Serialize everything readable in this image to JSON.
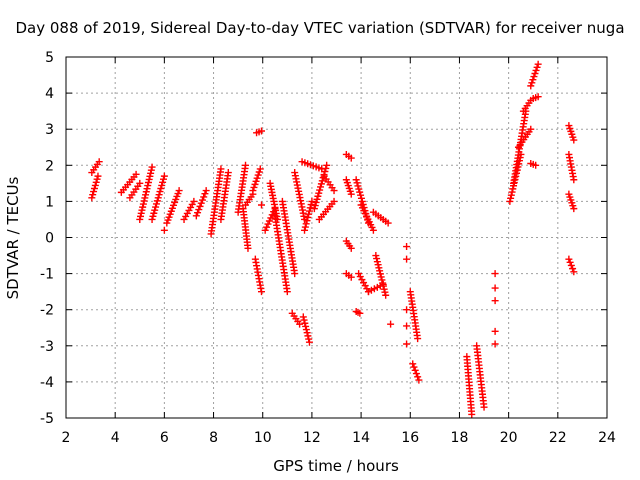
{
  "chart_data": {
    "type": "scatter",
    "title": "Day 088 of 2019, Sidereal Day-to-day VTEC variation (SDTVAR) for receiver nuga",
    "xlabel": "GPS time / hours",
    "ylabel": "SDTVAR / TECUs",
    "xlim": [
      2,
      24
    ],
    "ylim": [
      -5,
      5
    ],
    "xticks": [
      "2",
      "4",
      "6",
      "8",
      "10",
      "12",
      "14",
      "16",
      "18",
      "20",
      "22",
      "24"
    ],
    "yticks": [
      "5",
      "4",
      "3",
      "2",
      "1",
      "0",
      "-1",
      "-2",
      "-3",
      "-4",
      "-5"
    ],
    "grid": true,
    "marker": "+",
    "color": "#ff0000",
    "series_segments": [
      {
        "x0": 3.05,
        "y0": 1.1,
        "x1": 3.3,
        "y1": 1.7
      },
      {
        "x0": 3.05,
        "y0": 1.8,
        "x1": 3.35,
        "y1": 2.1
      },
      {
        "x0": 4.25,
        "y0": 1.25,
        "x1": 4.85,
        "y1": 1.75
      },
      {
        "x0": 4.6,
        "y0": 1.1,
        "x1": 5.0,
        "y1": 1.5
      },
      {
        "x0": 5.0,
        "y0": 0.5,
        "x1": 5.5,
        "y1": 1.95
      },
      {
        "x0": 5.5,
        "y0": 0.5,
        "x1": 6.0,
        "y1": 1.7
      },
      {
        "x0": 6.1,
        "y0": 0.4,
        "x1": 6.6,
        "y1": 1.3
      },
      {
        "x0": 6.8,
        "y0": 0.5,
        "x1": 7.2,
        "y1": 1.0
      },
      {
        "x0": 7.3,
        "y0": 0.6,
        "x1": 7.7,
        "y1": 1.3
      },
      {
        "x0": 7.9,
        "y0": 0.1,
        "x1": 8.3,
        "y1": 1.9
      },
      {
        "x0": 8.3,
        "y0": 0.5,
        "x1": 8.6,
        "y1": 1.8
      },
      {
        "x0": 9.0,
        "y0": 0.7,
        "x1": 9.3,
        "y1": 2.0
      },
      {
        "x0": 9.3,
        "y0": 0.9,
        "x1": 9.6,
        "y1": 1.2
      },
      {
        "x0": 9.6,
        "y0": 1.3,
        "x1": 9.9,
        "y1": 1.9
      },
      {
        "x0": 9.2,
        "y0": 0.8,
        "x1": 9.4,
        "y1": -0.3
      },
      {
        "x0": 9.7,
        "y0": -0.6,
        "x1": 9.95,
        "y1": -1.5
      },
      {
        "x0": 9.75,
        "y0": 2.9,
        "x1": 9.95,
        "y1": 2.95
      },
      {
        "x0": 10.1,
        "y0": 0.2,
        "x1": 10.5,
        "y1": 0.8
      },
      {
        "x0": 10.3,
        "y0": 1.5,
        "x1": 10.6,
        "y1": 0.5
      },
      {
        "x0": 10.5,
        "y0": 0.6,
        "x1": 11.0,
        "y1": -1.5
      },
      {
        "x0": 10.8,
        "y0": 1.0,
        "x1": 11.3,
        "y1": -1.0
      },
      {
        "x0": 11.2,
        "y0": -2.1,
        "x1": 11.5,
        "y1": -2.4
      },
      {
        "x0": 11.65,
        "y0": -2.2,
        "x1": 11.9,
        "y1": -2.9
      },
      {
        "x0": 11.6,
        "y0": 2.1,
        "x1": 12.4,
        "y1": 1.9
      },
      {
        "x0": 11.3,
        "y0": 1.8,
        "x1": 11.7,
        "y1": 0.5
      },
      {
        "x0": 11.7,
        "y0": 0.2,
        "x1": 12.0,
        "y1": 1.0
      },
      {
        "x0": 12.1,
        "y0": 0.8,
        "x1": 12.6,
        "y1": 2.0
      },
      {
        "x0": 12.5,
        "y0": 1.7,
        "x1": 12.9,
        "y1": 1.3
      },
      {
        "x0": 12.3,
        "y0": 0.5,
        "x1": 12.9,
        "y1": 1.0
      },
      {
        "x0": 13.4,
        "y0": 2.3,
        "x1": 13.6,
        "y1": 2.2
      },
      {
        "x0": 13.4,
        "y0": 1.6,
        "x1": 13.6,
        "y1": 1.2
      },
      {
        "x0": 13.8,
        "y0": 1.6,
        "x1": 14.3,
        "y1": 0.4
      },
      {
        "x0": 14.0,
        "y0": 0.9,
        "x1": 14.5,
        "y1": 0.2
      },
      {
        "x0": 14.5,
        "y0": 0.7,
        "x1": 15.1,
        "y1": 0.4
      },
      {
        "x0": 13.9,
        "y0": -1.0,
        "x1": 14.3,
        "y1": -1.5
      },
      {
        "x0": 14.3,
        "y0": -1.5,
        "x1": 14.9,
        "y1": -1.3
      },
      {
        "x0": 14.6,
        "y0": -0.5,
        "x1": 15.0,
        "y1": -1.6
      },
      {
        "x0": 13.4,
        "y0": -0.1,
        "x1": 13.6,
        "y1": -0.3
      },
      {
        "x0": 13.4,
        "y0": -1.0,
        "x1": 13.6,
        "y1": -1.1
      },
      {
        "x0": 13.8,
        "y0": -2.05,
        "x1": 13.95,
        "y1": -2.1
      },
      {
        "x0": 16.0,
        "y0": -1.5,
        "x1": 16.3,
        "y1": -2.8
      },
      {
        "x0": 16.1,
        "y0": -3.5,
        "x1": 16.35,
        "y1": -3.95
      },
      {
        "x0": 18.3,
        "y0": -3.3,
        "x1": 18.5,
        "y1": -4.9
      },
      {
        "x0": 18.7,
        "y0": -3.0,
        "x1": 19.0,
        "y1": -4.7
      },
      {
        "x0": 20.05,
        "y0": 1.0,
        "x1": 20.5,
        "y1": 2.3
      },
      {
        "x0": 20.2,
        "y0": 1.5,
        "x1": 20.7,
        "y1": 3.5
      },
      {
        "x0": 20.4,
        "y0": 2.5,
        "x1": 20.9,
        "y1": 3.0
      },
      {
        "x0": 20.6,
        "y0": 3.5,
        "x1": 20.9,
        "y1": 3.8
      },
      {
        "x0": 21.0,
        "y0": 3.85,
        "x1": 21.2,
        "y1": 3.9
      },
      {
        "x0": 20.9,
        "y0": 4.2,
        "x1": 21.2,
        "y1": 4.8
      },
      {
        "x0": 20.9,
        "y0": 2.05,
        "x1": 21.1,
        "y1": 2.0
      },
      {
        "x0": 22.45,
        "y0": 3.1,
        "x1": 22.65,
        "y1": 2.7
      },
      {
        "x0": 22.45,
        "y0": 2.3,
        "x1": 22.65,
        "y1": 1.6
      },
      {
        "x0": 22.45,
        "y0": 1.2,
        "x1": 22.65,
        "y1": 0.8
      },
      {
        "x0": 22.45,
        "y0": -0.6,
        "x1": 22.65,
        "y1": -0.95
      }
    ],
    "isolated_points": [
      {
        "x": 6.0,
        "y": 0.2
      },
      {
        "x": 9.95,
        "y": 0.9
      },
      {
        "x": 15.2,
        "y": -2.4
      },
      {
        "x": 15.85,
        "y": -0.25
      },
      {
        "x": 15.85,
        "y": -0.6
      },
      {
        "x": 15.85,
        "y": -2.0
      },
      {
        "x": 15.85,
        "y": -2.45
      },
      {
        "x": 15.85,
        "y": -2.95
      },
      {
        "x": 19.45,
        "y": -1.0
      },
      {
        "x": 19.45,
        "y": -1.4
      },
      {
        "x": 19.45,
        "y": -1.75
      },
      {
        "x": 19.45,
        "y": -2.6
      },
      {
        "x": 19.45,
        "y": -2.95
      }
    ]
  }
}
